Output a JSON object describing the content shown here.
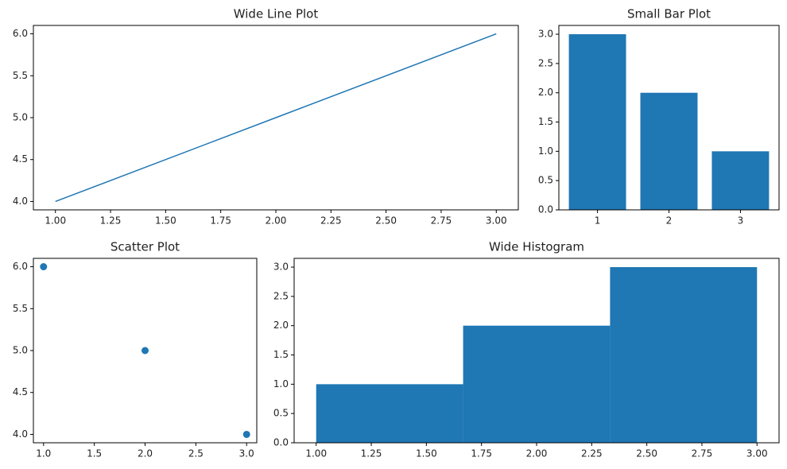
{
  "chart_data": [
    {
      "type": "line",
      "title": "Wide Line Plot",
      "x": [
        1,
        2,
        3
      ],
      "values": [
        4,
        5,
        6
      ],
      "color": "#1f77b4",
      "xlim": [
        0.9,
        3.1
      ],
      "ylim": [
        3.9,
        6.1
      ],
      "xticks": [
        {
          "value": 1,
          "label": "1.00"
        },
        {
          "value": 1.25,
          "label": "1.25"
        },
        {
          "value": 1.5,
          "label": "1.50"
        },
        {
          "value": 1.75,
          "label": "1.75"
        },
        {
          "value": 2,
          "label": "2.00"
        },
        {
          "value": 2.25,
          "label": "2.25"
        },
        {
          "value": 2.5,
          "label": "2.50"
        },
        {
          "value": 2.75,
          "label": "2.75"
        },
        {
          "value": 3,
          "label": "3.00"
        }
      ],
      "yticks": [
        {
          "value": 4,
          "label": "4.0"
        },
        {
          "value": 4.5,
          "label": "4.5"
        },
        {
          "value": 5,
          "label": "5.0"
        },
        {
          "value": 5.5,
          "label": "5.5"
        },
        {
          "value": 6,
          "label": "6.0"
        }
      ]
    },
    {
      "type": "bar",
      "title": "Small Bar Plot",
      "x": [
        1,
        2,
        3
      ],
      "values": [
        3,
        2,
        1
      ],
      "color": "#1f77b4",
      "xlim": [
        0.46,
        3.54
      ],
      "ylim": [
        0,
        3.15
      ],
      "xticks": [
        1,
        2,
        3
      ],
      "yticks": [
        {
          "value": 0,
          "label": "0.0"
        },
        {
          "value": 0.5,
          "label": "0.5"
        },
        {
          "value": 1,
          "label": "1.0"
        },
        {
          "value": 1.5,
          "label": "1.5"
        },
        {
          "value": 2,
          "label": "2.0"
        },
        {
          "value": 2.5,
          "label": "2.5"
        },
        {
          "value": 3,
          "label": "3.0"
        }
      ]
    },
    {
      "type": "scatter",
      "title": "Scatter Plot",
      "x": [
        1,
        2,
        3
      ],
      "values": [
        6,
        5,
        4
      ],
      "color": "#1f77b4",
      "xlim": [
        0.9,
        3.1
      ],
      "ylim": [
        3.9,
        6.1
      ],
      "xticks": [
        {
          "value": 1,
          "label": "1.0"
        },
        {
          "value": 1.5,
          "label": "1.5"
        },
        {
          "value": 2,
          "label": "2.0"
        },
        {
          "value": 2.5,
          "label": "2.5"
        },
        {
          "value": 3,
          "label": "3.0"
        }
      ],
      "yticks": [
        {
          "value": 4,
          "label": "4.0"
        },
        {
          "value": 4.5,
          "label": "4.5"
        },
        {
          "value": 5,
          "label": "5.0"
        },
        {
          "value": 5.5,
          "label": "5.5"
        },
        {
          "value": 6,
          "label": "6.0"
        }
      ]
    },
    {
      "type": "histogram",
      "title": "Wide Histogram",
      "bins": [
        1,
        1.6667,
        2.3333,
        3
      ],
      "values": [
        1,
        2,
        3
      ],
      "color": "#1f77b4",
      "xlim": [
        0.9,
        3.1
      ],
      "ylim": [
        0,
        3.15
      ],
      "xticks": [
        {
          "value": 1,
          "label": "1.00"
        },
        {
          "value": 1.25,
          "label": "1.25"
        },
        {
          "value": 1.5,
          "label": "1.50"
        },
        {
          "value": 1.75,
          "label": "1.75"
        },
        {
          "value": 2,
          "label": "2.00"
        },
        {
          "value": 2.25,
          "label": "2.25"
        },
        {
          "value": 2.5,
          "label": "2.50"
        },
        {
          "value": 2.75,
          "label": "2.75"
        },
        {
          "value": 3,
          "label": "3.00"
        }
      ],
      "yticks": [
        {
          "value": 0,
          "label": "0.0"
        },
        {
          "value": 0.5,
          "label": "0.5"
        },
        {
          "value": 1,
          "label": "1.0"
        },
        {
          "value": 1.5,
          "label": "1.5"
        },
        {
          "value": 2,
          "label": "2.0"
        },
        {
          "value": 2.5,
          "label": "2.5"
        },
        {
          "value": 3,
          "label": "3.0"
        }
      ]
    }
  ]
}
